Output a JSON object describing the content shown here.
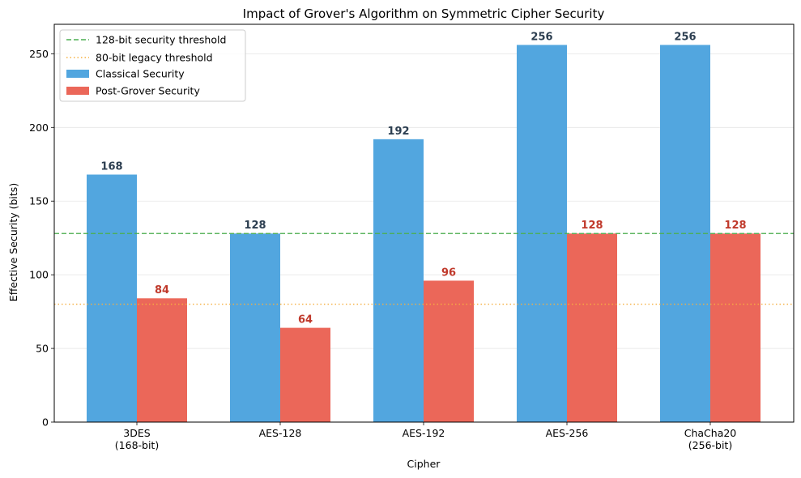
{
  "chart_data": {
    "type": "bar",
    "title": "Impact of Grover's Algorithm on Symmetric Cipher Security",
    "xlabel": "Cipher",
    "ylabel": "Effective Security (bits)",
    "ylim": [
      0,
      270
    ],
    "yticks": [
      "0",
      "50",
      "100",
      "150",
      "200",
      "250"
    ],
    "categories": [
      [
        "3DES",
        "(168-bit)"
      ],
      [
        "AES-128"
      ],
      [
        "AES-192"
      ],
      [
        "AES-256"
      ],
      [
        "ChaCha20",
        "(256-bit)"
      ]
    ],
    "series": [
      {
        "name": "Classical Security",
        "values": [
          168,
          128,
          192,
          256,
          256
        ],
        "labels": [
          "168",
          "128",
          "192",
          "256",
          "256"
        ],
        "color": "#52a6df",
        "label_color": "#2c3e50"
      },
      {
        "name": "Post-Grover Security",
        "values": [
          84,
          64,
          96,
          128,
          128
        ],
        "labels": [
          "84",
          "64",
          "96",
          "128",
          "128"
        ],
        "color": "#eb6759",
        "label_color": "#c0392b"
      }
    ],
    "reference_lines": [
      {
        "name": "128-bit security threshold",
        "value": 128,
        "color": "#4caf50",
        "style": "dashed"
      },
      {
        "name": "80-bit legacy threshold",
        "value": 80,
        "color": "#f5b041",
        "style": "dotted"
      }
    ],
    "grid": "y",
    "legend_position": "top-left"
  }
}
